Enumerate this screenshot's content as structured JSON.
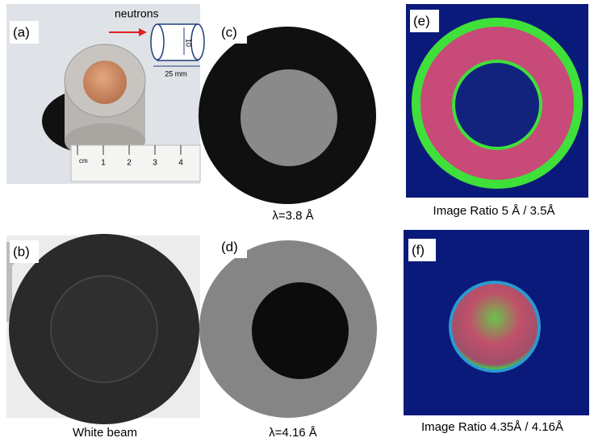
{
  "panels": [
    {
      "label": "(a)",
      "annotations": {
        "beam": "neutrons",
        "height": "10",
        "diameter": "25 mm",
        "ruler_unit": "cm",
        "ruler_marks": [
          "1",
          "2",
          "3",
          "4"
        ]
      }
    },
    {
      "label": "(b)",
      "caption": "White beam"
    },
    {
      "label": "(c)",
      "caption": "λ=3.8 Å"
    },
    {
      "label": "(d)",
      "caption": "λ=4.16 Å"
    },
    {
      "label": "(e)",
      "caption": "Image Ratio 5 Å  / 3.5Å"
    },
    {
      "label": "(f)",
      "caption": "Image Ratio 4.35Å  / 4.16Å"
    }
  ]
}
